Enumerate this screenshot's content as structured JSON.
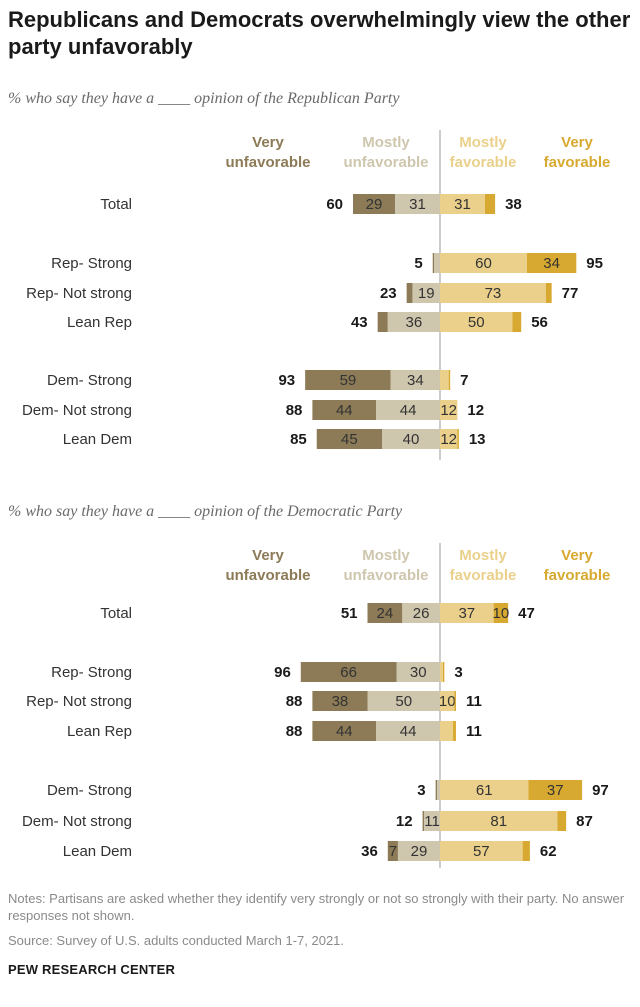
{
  "title": "Republicans and Democrats overwhelmingly view the other party unfavorably",
  "colors": {
    "very_unfavorable": "#8c7b56",
    "mostly_unfavorable": "#cfc6ae",
    "mostly_favorable": "#ead08a",
    "very_favorable": "#d8a930",
    "center_line": "#9a9a9a"
  },
  "legend": {
    "very_unfavorable": [
      "Very",
      "unfavorable"
    ],
    "mostly_unfavorable": [
      "Mostly",
      "unfavorable"
    ],
    "mostly_favorable": [
      "Mostly",
      "favorable"
    ],
    "very_favorable": [
      "Very",
      "favorable"
    ]
  },
  "chart_data": [
    {
      "type": "bar",
      "subtitle": "% who say they have a ____ opinion of the Republican Party",
      "categories": [
        "Total",
        "Rep- Strong",
        "Rep- Not strong",
        "Lean Rep",
        "Dem- Strong",
        "Dem- Not strong",
        "Lean Dem"
      ],
      "series": [
        {
          "name": "Very unfavorable",
          "values": [
            29,
            1,
            4,
            7,
            59,
            44,
            45
          ]
        },
        {
          "name": "Mostly unfavorable",
          "values": [
            31,
            4,
            19,
            36,
            34,
            44,
            40
          ]
        },
        {
          "name": "Mostly favorable",
          "values": [
            31,
            60,
            73,
            50,
            6,
            12,
            12
          ]
        },
        {
          "name": "Very favorable",
          "values": [
            7,
            34,
            4,
            6,
            1,
            0,
            1
          ]
        }
      ],
      "seg_labels": [
        [
          "29",
          "31",
          "31",
          ""
        ],
        [
          "",
          "",
          "60",
          "34"
        ],
        [
          "",
          "19",
          "73",
          ""
        ],
        [
          "",
          "36",
          "50",
          ""
        ],
        [
          "59",
          "34",
          "",
          ""
        ],
        [
          "44",
          "44",
          "12",
          ""
        ],
        [
          "45",
          "40",
          "12",
          ""
        ]
      ],
      "net_unfavorable": [
        60,
        5,
        23,
        43,
        93,
        88,
        85
      ],
      "net_favorable": [
        38,
        95,
        77,
        56,
        7,
        12,
        13
      ]
    },
    {
      "type": "bar",
      "subtitle": "% who say they have a ____ opinion of the Democratic Party",
      "categories": [
        "Total",
        "Rep- Strong",
        "Rep- Not strong",
        "Lean Rep",
        "Dem- Strong",
        "Dem- Not strong",
        "Lean Dem"
      ],
      "series": [
        {
          "name": "Very unfavorable",
          "values": [
            24,
            66,
            38,
            44,
            1,
            1,
            7
          ]
        },
        {
          "name": "Mostly unfavorable",
          "values": [
            26,
            30,
            50,
            44,
            2,
            11,
            29
          ]
        },
        {
          "name": "Mostly favorable",
          "values": [
            37,
            2,
            10,
            9,
            61,
            81,
            57
          ]
        },
        {
          "name": "Very favorable",
          "values": [
            10,
            1,
            1,
            2,
            37,
            6,
            5
          ]
        }
      ],
      "seg_labels": [
        [
          "24",
          "26",
          "37",
          "10"
        ],
        [
          "66",
          "30",
          "",
          ""
        ],
        [
          "38",
          "50",
          "10",
          ""
        ],
        [
          "44",
          "44",
          "",
          ""
        ],
        [
          "",
          "",
          "61",
          "37"
        ],
        [
          "",
          "11",
          "81",
          ""
        ],
        [
          "7",
          "29",
          "57",
          ""
        ]
      ],
      "net_unfavorable": [
        51,
        96,
        88,
        88,
        3,
        12,
        36
      ],
      "net_favorable": [
        47,
        3,
        11,
        11,
        97,
        87,
        62
      ]
    }
  ],
  "notes": "Notes: Partisans are asked whether they identify very strongly or not so strongly with their party. No answer responses not shown.",
  "source": "Source: Survey of U.S. adults conducted March 1-7, 2021.",
  "brand": "PEW RESEARCH CENTER"
}
